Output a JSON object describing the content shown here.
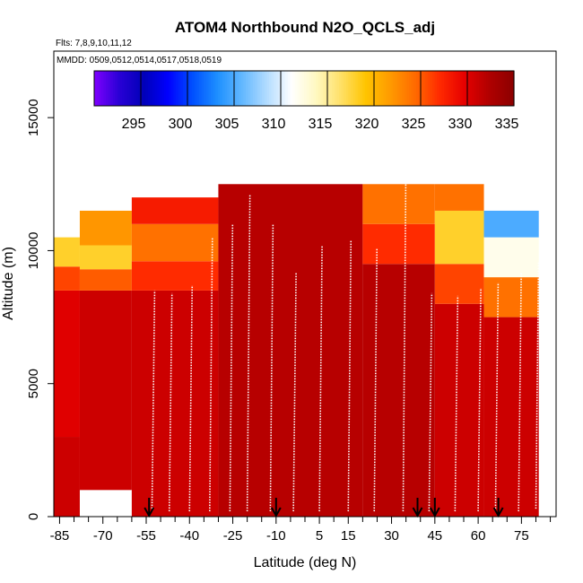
{
  "chart_data": {
    "type": "heatmap",
    "title": "ATOM4 Northbound N2O_QCLS_adj",
    "subtitle_flights": "Flts: 7,8,9,10,11,12",
    "subtitle_dates": "MMDD: 0509,0512,0514,0517,0518,0519",
    "xlabel": "Latitude (deg N)",
    "ylabel": "Altitude (m)",
    "xlim": [
      -87,
      87
    ],
    "ylim": [
      0,
      17500
    ],
    "x_ticks": [
      -85,
      -70,
      -55,
      -40,
      -25,
      -10,
      5,
      15,
      30,
      45,
      60,
      75
    ],
    "x_minor_ticks": [
      -80,
      -75,
      -65,
      -60,
      -50,
      -45,
      -35,
      -30,
      -20,
      -15,
      -5,
      0,
      10,
      20,
      25,
      35,
      40,
      50,
      55,
      65,
      70,
      80,
      85
    ],
    "y_ticks": [
      0,
      5000,
      10000,
      15000
    ],
    "colorbar": {
      "min": 290,
      "max": 335,
      "ticks": [
        295,
        300,
        305,
        310,
        315,
        320,
        325,
        330,
        335
      ],
      "colors": [
        "#7f00ff",
        "#2a00d6",
        "#0000b8",
        "#0000ff",
        "#0050ff",
        "#1e90ff",
        "#63b8ff",
        "#b3dcff",
        "#ffffff",
        "#fff8c0",
        "#ffe066",
        "#ffc400",
        "#ff9a00",
        "#ff6a00",
        "#ff2a00",
        "#e60000",
        "#b00000",
        "#8b0000"
      ]
    },
    "heatmap_description": "curtain of N2O (ppb) vs latitude and altitude; mostly 328-333 below ~9000 m, decreasing to ~305-320 in 9000-12500 m layer at high latitudes",
    "column_profiles": [
      {
        "lat_range": [
          -87,
          -78
        ],
        "n2o_by_alt": [
          [
            0,
            3000,
            331
          ],
          [
            3000,
            8500,
            330
          ],
          [
            8500,
            9400,
            326
          ],
          [
            9400,
            10500,
            318
          ]
        ]
      },
      {
        "lat_range": [
          -78,
          -60
        ],
        "n2o_by_alt": [
          [
            1000,
            8500,
            331
          ],
          [
            8500,
            9300,
            325
          ],
          [
            9300,
            10200,
            318
          ],
          [
            10200,
            11500,
            322
          ]
        ]
      },
      {
        "lat_range": [
          -60,
          -30
        ],
        "n2o_by_alt": [
          [
            0,
            8500,
            331
          ],
          [
            8500,
            9600,
            327
          ],
          [
            9600,
            11000,
            324
          ],
          [
            11000,
            12000,
            328
          ]
        ]
      },
      {
        "lat_range": [
          -30,
          20
        ],
        "n2o_by_alt": [
          [
            0,
            12500,
            332
          ]
        ]
      },
      {
        "lat_range": [
          20,
          45
        ],
        "n2o_by_alt": [
          [
            0,
            9500,
            332
          ],
          [
            9500,
            11000,
            327
          ],
          [
            11000,
            12500,
            324
          ]
        ]
      },
      {
        "lat_range": [
          45,
          62
        ],
        "n2o_by_alt": [
          [
            0,
            8000,
            331
          ],
          [
            8000,
            9500,
            326
          ],
          [
            9500,
            11500,
            318
          ],
          [
            11500,
            12500,
            324
          ]
        ]
      },
      {
        "lat_range": [
          62,
          81
        ],
        "n2o_by_alt": [
          [
            0,
            7500,
            331
          ],
          [
            7500,
            9000,
            324
          ],
          [
            9000,
            10500,
            312
          ],
          [
            10500,
            11500,
            305
          ]
        ]
      }
    ],
    "flight_tracks": [
      {
        "lat": -53,
        "alt": [
          200,
          8500
        ]
      },
      {
        "lat": -47,
        "alt": [
          200,
          8400
        ]
      },
      {
        "lat": -40,
        "alt": [
          200,
          8700
        ]
      },
      {
        "lat": -33,
        "alt": [
          200,
          10500
        ]
      },
      {
        "lat": -26,
        "alt": [
          200,
          11000
        ]
      },
      {
        "lat": -20,
        "alt": [
          200,
          12100
        ]
      },
      {
        "lat": -12,
        "alt": [
          200,
          11000
        ]
      },
      {
        "lat": -4,
        "alt": [
          200,
          9200
        ]
      },
      {
        "lat": 5,
        "alt": [
          200,
          10200
        ]
      },
      {
        "lat": 15,
        "alt": [
          200,
          10400
        ]
      },
      {
        "lat": 24,
        "alt": [
          200,
          10100
        ]
      },
      {
        "lat": 34,
        "alt": [
          200,
          12600
        ]
      },
      {
        "lat": 43,
        "alt": [
          200,
          8400
        ]
      },
      {
        "lat": 52,
        "alt": [
          200,
          8300
        ]
      },
      {
        "lat": 60,
        "alt": [
          200,
          8600
        ]
      },
      {
        "lat": 66,
        "alt": [
          200,
          8800
        ]
      },
      {
        "lat": 74,
        "alt": [
          200,
          9200
        ]
      },
      {
        "lat": 80,
        "alt": [
          300,
          9600
        ]
      }
    ],
    "arrow_markers": [
      -54,
      -10,
      39,
      45,
      67
    ]
  }
}
